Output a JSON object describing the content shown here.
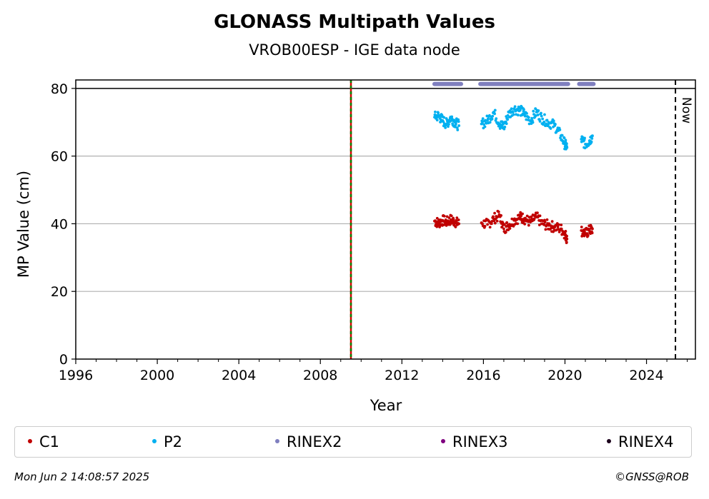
{
  "chart_data": {
    "type": "scatter",
    "title": "GLONASS Multipath Values",
    "subtitle": "VROB00ESP - IGE data node",
    "xlabel": "Year",
    "ylabel": "MP Value (cm)",
    "xlim": [
      1996,
      2026.4
    ],
    "ylim": [
      0,
      82.5
    ],
    "x_ticks": [
      "1996",
      "2000",
      "2004",
      "2008",
      "2012",
      "2016",
      "2020",
      "2024"
    ],
    "y_ticks": [
      "0",
      "20",
      "40",
      "60",
      "80"
    ],
    "grid": "horizontal",
    "reference_lines": [
      {
        "type": "horizontal",
        "y": 80,
        "style": "solid",
        "color": "#000000"
      },
      {
        "type": "vertical",
        "x": 2009.5,
        "style": "red-green dashed"
      },
      {
        "type": "vertical",
        "x": 2025.42,
        "style": "dashed",
        "color": "#000000",
        "label": "Now"
      }
    ],
    "series": [
      {
        "name": "C1",
        "color": "#c00000",
        "points": [
          [
            2013.6,
            40.8
          ],
          [
            2013.8,
            40.2
          ],
          [
            2014.0,
            41.0
          ],
          [
            2014.2,
            40.5
          ],
          [
            2014.4,
            41.2
          ],
          [
            2014.6,
            40.6
          ],
          [
            2014.8,
            40.0
          ],
          [
            2015.9,
            40.3
          ],
          [
            2016.2,
            39.8
          ],
          [
            2016.5,
            41.5
          ],
          [
            2016.8,
            42.5
          ],
          [
            2017.0,
            38.5
          ],
          [
            2017.2,
            39.5
          ],
          [
            2017.5,
            41.0
          ],
          [
            2017.8,
            42.0
          ],
          [
            2018.0,
            41.5
          ],
          [
            2018.3,
            40.5
          ],
          [
            2018.6,
            42.0
          ],
          [
            2018.9,
            40.0
          ],
          [
            2019.2,
            39.5
          ],
          [
            2019.5,
            39.0
          ],
          [
            2019.8,
            38.5
          ],
          [
            2020.0,
            37.0
          ],
          [
            2020.1,
            35.5
          ],
          [
            2020.8,
            38.0
          ],
          [
            2021.0,
            37.0
          ],
          [
            2021.2,
            38.0
          ],
          [
            2021.35,
            38.5
          ]
        ]
      },
      {
        "name": "P2",
        "color": "#00b0f0",
        "points": [
          [
            2013.6,
            71.5
          ],
          [
            2013.8,
            72.0
          ],
          [
            2014.0,
            70.5
          ],
          [
            2014.2,
            69.5
          ],
          [
            2014.4,
            71.5
          ],
          [
            2014.6,
            70.0
          ],
          [
            2014.8,
            69.0
          ],
          [
            2015.9,
            69.5
          ],
          [
            2016.2,
            70.5
          ],
          [
            2016.5,
            73.0
          ],
          [
            2016.8,
            69.5
          ],
          [
            2017.0,
            68.5
          ],
          [
            2017.2,
            72.0
          ],
          [
            2017.5,
            74.0
          ],
          [
            2017.8,
            73.5
          ],
          [
            2018.0,
            72.5
          ],
          [
            2018.3,
            70.5
          ],
          [
            2018.6,
            73.0
          ],
          [
            2018.9,
            71.0
          ],
          [
            2019.2,
            70.0
          ],
          [
            2019.5,
            69.0
          ],
          [
            2019.8,
            66.0
          ],
          [
            2020.0,
            63.5
          ],
          [
            2020.1,
            62.5
          ],
          [
            2020.8,
            65.0
          ],
          [
            2021.0,
            63.5
          ],
          [
            2021.2,
            64.5
          ],
          [
            2021.35,
            66.0
          ]
        ]
      },
      {
        "name": "RINEX2",
        "color": "#7f7fbf",
        "y": 81.3,
        "ranges": [
          [
            2013.6,
            2014.9
          ],
          [
            2015.85,
            2020.15
          ],
          [
            2020.7,
            2021.4
          ]
        ]
      },
      {
        "name": "RINEX3",
        "color": "#7f007f",
        "points": []
      },
      {
        "name": "RINEX4",
        "color": "#1a001a",
        "points": []
      }
    ]
  },
  "footer": {
    "timestamp": "Mon Jun  2 14:08:57 2025",
    "copyright": "©GNSS@ROB"
  }
}
